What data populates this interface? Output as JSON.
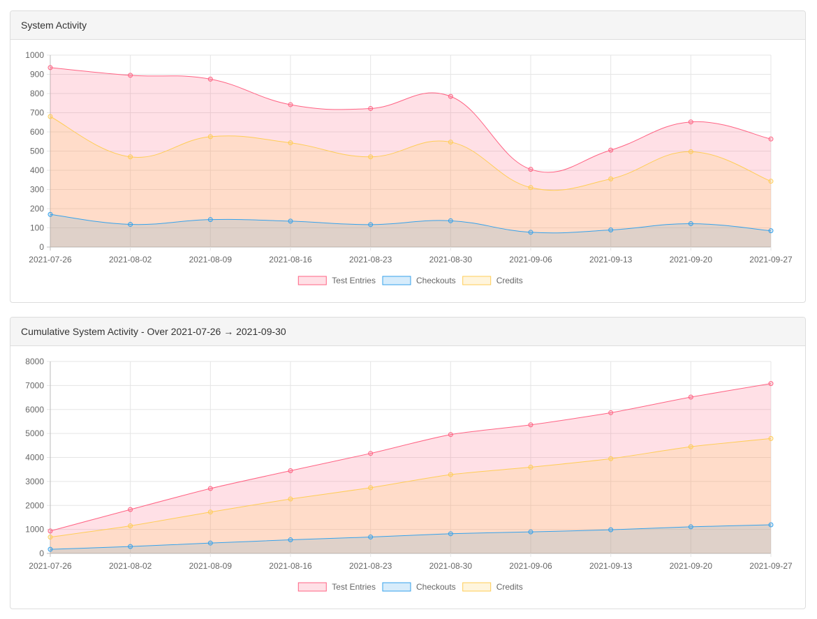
{
  "panels": [
    {
      "title": "System Activity",
      "chart_data": {
        "type": "area",
        "x": [
          "2021-07-26",
          "2021-08-02",
          "2021-08-09",
          "2021-08-16",
          "2021-08-23",
          "2021-08-30",
          "2021-09-06",
          "2021-09-13",
          "2021-09-20",
          "2021-09-27"
        ],
        "ylim": [
          0,
          1000
        ],
        "yticks": [
          0,
          100,
          200,
          300,
          400,
          500,
          600,
          700,
          800,
          900,
          1000
        ],
        "grid": true,
        "legend_position": "bottom",
        "series": [
          {
            "name": "Test Entries",
            "values": [
              935,
              895,
              875,
              742,
              722,
              785,
              405,
              505,
              652,
              563
            ],
            "color": "#ff6384",
            "fill": "rgba(255,99,132,0.2)"
          },
          {
            "name": "Checkouts",
            "values": [
              170,
              118,
              143,
              135,
              117,
              137,
              77,
              89,
              122,
              85
            ],
            "color": "#36a2eb",
            "fill": "rgba(54,162,235,0.2)"
          },
          {
            "name": "Credits",
            "values": [
              680,
              470,
              575,
              543,
              470,
              547,
              310,
              355,
              497,
              343
            ],
            "color": "#ffcd56",
            "fill": "rgba(255,205,86,0.2)"
          }
        ]
      }
    },
    {
      "title": "Cumulative System Activity - Over 2021-07-26 → 2021-09-30",
      "chart_data": {
        "type": "area",
        "x": [
          "2021-07-26",
          "2021-08-02",
          "2021-08-09",
          "2021-08-16",
          "2021-08-23",
          "2021-08-30",
          "2021-09-06",
          "2021-09-13",
          "2021-09-20",
          "2021-09-27"
        ],
        "ylim": [
          0,
          8000
        ],
        "yticks": [
          0,
          1000,
          2000,
          3000,
          4000,
          5000,
          6000,
          7000,
          8000
        ],
        "grid": true,
        "legend_position": "bottom",
        "series": [
          {
            "name": "Test Entries",
            "values": [
              935,
              1830,
              2705,
              3447,
              4169,
              4954,
              5359,
              5864,
              6516,
              7079
            ],
            "color": "#ff6384",
            "fill": "rgba(255,99,132,0.2)"
          },
          {
            "name": "Checkouts",
            "values": [
              170,
              288,
              431,
              566,
              683,
              820,
              897,
              986,
              1108,
              1193
            ],
            "color": "#36a2eb",
            "fill": "rgba(54,162,235,0.2)"
          },
          {
            "name": "Credits",
            "values": [
              680,
              1150,
              1725,
              2268,
              2738,
              3285,
              3595,
              3950,
              4447,
              4790
            ],
            "color": "#ffcd56",
            "fill": "rgba(255,205,86,0.2)"
          }
        ]
      }
    }
  ]
}
